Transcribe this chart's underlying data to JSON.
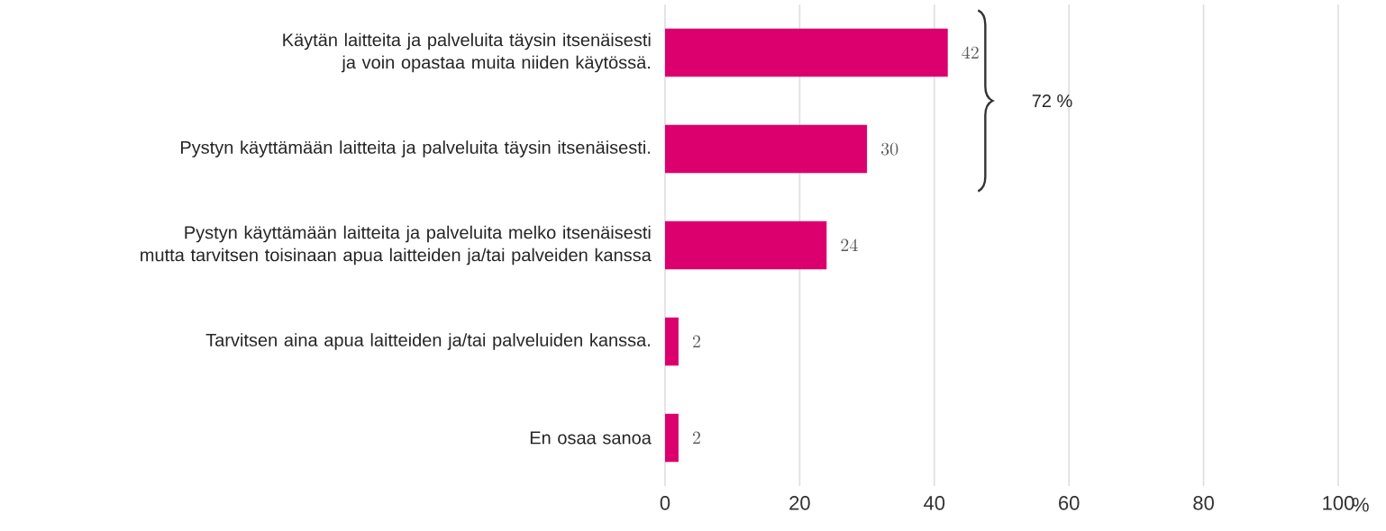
{
  "chart_data": {
    "type": "bar",
    "orientation": "horizontal",
    "categories": [
      "Käytän laitteita ja palveluita täysin itsenäisesti ja voin opastaa muita niiden käytössä.",
      "Pystyn käyttämään laitteita ja palveluita täysin itsenäisesti.",
      "Pystyn käyttämään laitteita ja palveluita melko itsenäisesti mutta tarvitsen toisinaan apua laitteiden ja/tai palveiden kanssa",
      "Tarvitsen aina apua laitteiden ja/tai palveluiden kanssa.",
      "En osaa sanoa"
    ],
    "values": [
      42,
      30,
      24,
      2,
      2
    ],
    "color": "#dc006e",
    "xlim": [
      0,
      100
    ],
    "xticks": [
      0,
      20,
      40,
      60,
      80,
      100
    ],
    "xlabel": "%",
    "grid": "x",
    "data_labels": true,
    "annotations": [
      "72 %"
    ]
  }
}
